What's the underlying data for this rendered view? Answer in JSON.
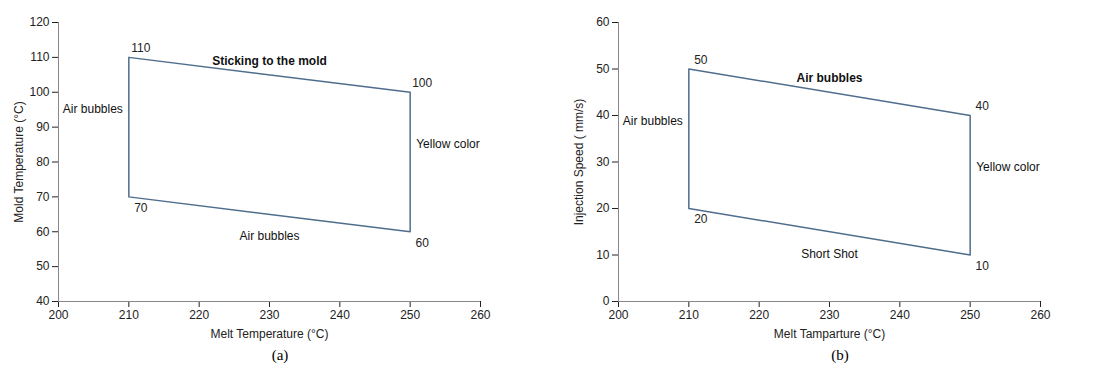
{
  "chart_data": [
    {
      "type": "polygon",
      "caption": "(a)",
      "x_label": "Melt Temperature (°C)",
      "y_label": "Mold Temperature (°C)",
      "x": [
        210,
        250,
        250,
        210
      ],
      "values": [
        110,
        100,
        60,
        70
      ],
      "data_labels": true,
      "color": "#4f6d8c",
      "xlim": [
        200,
        260
      ],
      "xticks": [
        200,
        210,
        220,
        230,
        240,
        250,
        260
      ],
      "ylim": [
        40,
        120
      ],
      "yticks": [
        40,
        50,
        60,
        70,
        80,
        90,
        100,
        110,
        120
      ],
      "annotations": [
        {
          "text": "Sticking to the mold",
          "side": "top"
        },
        {
          "text": "Air bubbles",
          "side": "left"
        },
        {
          "text": "Yellow color",
          "side": "right"
        },
        {
          "text": "Air bubbles",
          "side": "bottom"
        }
      ]
    },
    {
      "type": "polygon",
      "caption": "(b)",
      "x_label": "Melt Tamparture (°C)",
      "y_label": "Injection Speed ( mm/s)",
      "x": [
        210,
        250,
        250,
        210
      ],
      "values": [
        50,
        40,
        10,
        20
      ],
      "data_labels": true,
      "color": "#4f6d8c",
      "xlim": [
        200,
        260
      ],
      "xticks": [
        200,
        210,
        220,
        230,
        240,
        250,
        260
      ],
      "ylim": [
        0,
        60
      ],
      "yticks": [
        0,
        10,
        20,
        30,
        40,
        50,
        60
      ],
      "annotations": [
        {
          "text": "Air bubbles",
          "side": "top"
        },
        {
          "text": "Air bubbles",
          "side": "left"
        },
        {
          "text": "Yellow color",
          "side": "right"
        },
        {
          "text": "Short Shot",
          "side": "bottom"
        }
      ]
    }
  ]
}
